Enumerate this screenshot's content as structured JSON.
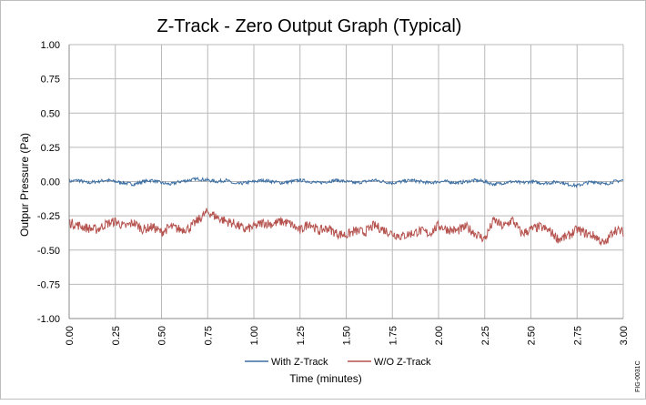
{
  "chart_data": {
    "type": "line",
    "title": "Z-Track - Zero Output Graph (Typical)",
    "xlabel": "Time (minutes)",
    "ylabel": "Outpur Pressure (Pa)",
    "xlim": [
      0.0,
      3.0
    ],
    "ylim": [
      -1.0,
      1.0
    ],
    "x_ticks": [
      "0.00",
      "0.25",
      "0.50",
      "0.75",
      "1.00",
      "1.25",
      "1.50",
      "1.75",
      "2.00",
      "2.25",
      "2.50",
      "2.75",
      "3.00"
    ],
    "y_ticks": [
      "1.00",
      "0.75",
      "0.50",
      "0.25",
      "0.00",
      "-0.25",
      "-0.50",
      "-0.75",
      "-1.00"
    ],
    "grid": true,
    "legend_position": "bottom",
    "series": [
      {
        "name": "With Z-Track",
        "color": "#3c6fa3",
        "x": [
          0.0,
          0.05,
          0.1,
          0.15,
          0.2,
          0.25,
          0.3,
          0.35,
          0.4,
          0.45,
          0.5,
          0.55,
          0.6,
          0.65,
          0.7,
          0.75,
          0.8,
          0.85,
          0.9,
          0.95,
          1.0,
          1.05,
          1.1,
          1.15,
          1.2,
          1.25,
          1.3,
          1.35,
          1.4,
          1.45,
          1.5,
          1.55,
          1.6,
          1.65,
          1.7,
          1.75,
          1.8,
          1.85,
          1.9,
          1.95,
          2.0,
          2.05,
          2.1,
          2.15,
          2.2,
          2.25,
          2.3,
          2.35,
          2.4,
          2.45,
          2.5,
          2.55,
          2.6,
          2.65,
          2.7,
          2.75,
          2.8,
          2.85,
          2.9,
          2.95,
          3.0
        ],
        "values": [
          0.0,
          0.01,
          -0.01,
          0.0,
          0.01,
          0.0,
          -0.01,
          -0.02,
          0.0,
          0.01,
          -0.01,
          -0.02,
          0.0,
          0.01,
          0.02,
          0.01,
          0.0,
          0.01,
          -0.02,
          -0.01,
          0.0,
          0.01,
          0.0,
          -0.01,
          0.0,
          0.01,
          0.0,
          -0.01,
          0.0,
          0.01,
          0.0,
          -0.01,
          0.0,
          0.01,
          0.0,
          -0.01,
          0.0,
          0.01,
          0.0,
          -0.01,
          0.0,
          0.0,
          -0.01,
          0.0,
          0.01,
          0.0,
          -0.02,
          -0.01,
          0.0,
          -0.01,
          0.0,
          -0.01,
          -0.01,
          0.0,
          -0.02,
          -0.03,
          -0.01,
          0.0,
          -0.02,
          0.0,
          0.01
        ]
      },
      {
        "name": "W/O Z-Track",
        "color": "#b5524e",
        "x": [
          0.0,
          0.05,
          0.1,
          0.15,
          0.2,
          0.25,
          0.3,
          0.35,
          0.4,
          0.45,
          0.5,
          0.55,
          0.6,
          0.65,
          0.7,
          0.75,
          0.8,
          0.85,
          0.9,
          0.95,
          1.0,
          1.05,
          1.1,
          1.15,
          1.2,
          1.25,
          1.3,
          1.35,
          1.4,
          1.45,
          1.5,
          1.55,
          1.6,
          1.65,
          1.7,
          1.75,
          1.8,
          1.85,
          1.9,
          1.95,
          2.0,
          2.05,
          2.1,
          2.15,
          2.2,
          2.25,
          2.3,
          2.35,
          2.4,
          2.45,
          2.5,
          2.55,
          2.6,
          2.65,
          2.7,
          2.75,
          2.8,
          2.85,
          2.9,
          2.95,
          3.0
        ],
        "values": [
          -0.3,
          -0.32,
          -0.34,
          -0.35,
          -0.31,
          -0.29,
          -0.33,
          -0.3,
          -0.35,
          -0.33,
          -0.37,
          -0.33,
          -0.35,
          -0.34,
          -0.28,
          -0.22,
          -0.26,
          -0.29,
          -0.31,
          -0.35,
          -0.33,
          -0.3,
          -0.31,
          -0.29,
          -0.31,
          -0.36,
          -0.3,
          -0.36,
          -0.34,
          -0.38,
          -0.39,
          -0.36,
          -0.37,
          -0.32,
          -0.35,
          -0.38,
          -0.4,
          -0.38,
          -0.36,
          -0.38,
          -0.32,
          -0.35,
          -0.36,
          -0.33,
          -0.38,
          -0.42,
          -0.28,
          -0.33,
          -0.28,
          -0.38,
          -0.35,
          -0.33,
          -0.36,
          -0.42,
          -0.4,
          -0.35,
          -0.38,
          -0.4,
          -0.46,
          -0.35,
          -0.37
        ]
      }
    ]
  },
  "fig_code": "FIG-0031C"
}
